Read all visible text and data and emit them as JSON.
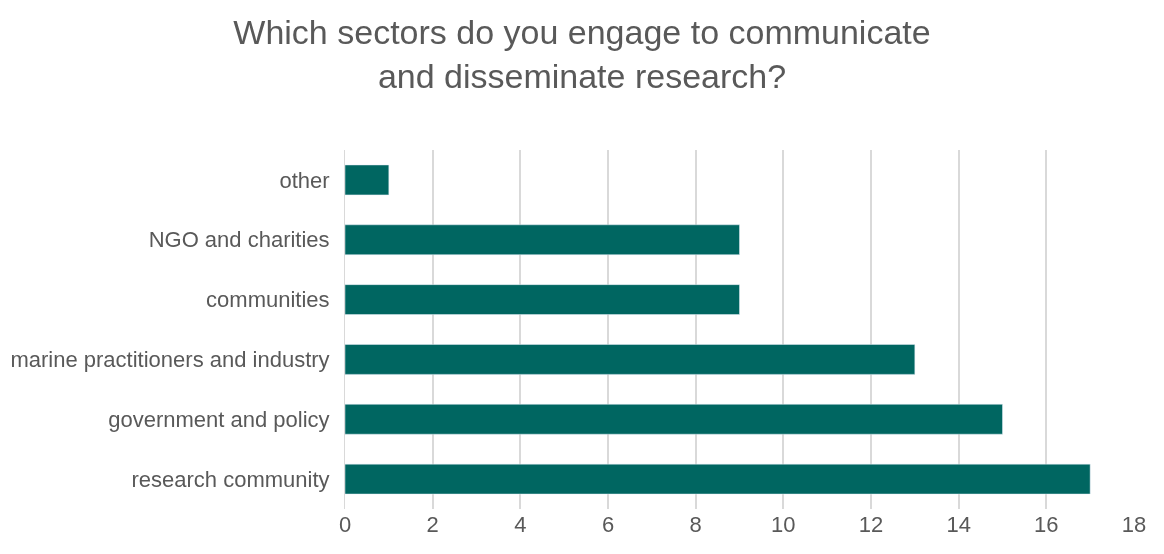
{
  "chart_data": {
    "type": "bar",
    "orientation": "horizontal",
    "title": "Which sectors do you engage to communicate and disseminate research?",
    "categories": [
      "other",
      "NGO and charities",
      "communities",
      "marine practitioners and industry",
      "government and policy",
      "research community"
    ],
    "values": [
      1,
      9,
      9,
      13,
      15,
      17
    ],
    "color": "#006661",
    "xlim": [
      0,
      18
    ],
    "xticks": [
      0,
      2,
      4,
      6,
      8,
      10,
      12,
      14,
      16,
      18
    ],
    "grid": "x",
    "legend": false
  }
}
